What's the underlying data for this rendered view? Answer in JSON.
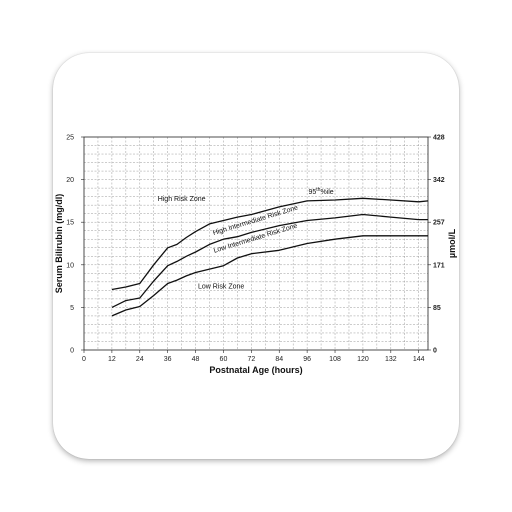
{
  "chart_data": {
    "type": "line",
    "title": "",
    "xlabel": "Postnatal Age (hours)",
    "ylabel": "Serum Bilirubin (mg/dl)",
    "ylabel_right": "µmol/L",
    "xlim": [
      0,
      148
    ],
    "ylim": [
      0,
      25
    ],
    "grid": true,
    "x_ticks": [
      0,
      12,
      24,
      36,
      48,
      60,
      72,
      84,
      96,
      108,
      120,
      132,
      144
    ],
    "y_ticks": [
      0,
      5,
      10,
      15,
      20,
      25
    ],
    "right_ticks": [
      {
        "label": "0",
        "y": 0
      },
      {
        "label": "85",
        "y": 5
      },
      {
        "label": "171",
        "y": 10
      },
      {
        "label": "257",
        "y": 15
      },
      {
        "label": "342",
        "y": 20
      },
      {
        "label": "428",
        "y": 25
      }
    ],
    "series": [
      {
        "name": "95th %ile",
        "x": [
          12,
          18,
          24,
          30,
          36,
          40,
          44,
          48,
          54,
          60,
          66,
          72,
          84,
          96,
          108,
          120,
          132,
          144,
          148
        ],
        "values": [
          7.1,
          7.4,
          7.8,
          10.0,
          12.0,
          12.4,
          13.2,
          13.9,
          14.8,
          15.2,
          15.6,
          15.9,
          16.8,
          17.5,
          17.6,
          17.8,
          17.6,
          17.4,
          17.5
        ]
      },
      {
        "name": "",
        "x": [
          12,
          18,
          24,
          30,
          36,
          40,
          44,
          48,
          54,
          60,
          66,
          72,
          84,
          96,
          108,
          120,
          132,
          144,
          148
        ],
        "values": [
          5.0,
          5.8,
          6.1,
          8.1,
          9.9,
          10.4,
          11.0,
          11.5,
          12.4,
          13.0,
          13.3,
          13.8,
          14.6,
          15.2,
          15.5,
          15.9,
          15.6,
          15.3,
          15.3
        ]
      },
      {
        "name": "",
        "x": [
          12,
          18,
          24,
          30,
          36,
          40,
          44,
          48,
          54,
          60,
          66,
          72,
          84,
          96,
          108,
          120,
          132,
          144,
          148
        ],
        "values": [
          4.0,
          4.7,
          5.1,
          6.4,
          7.8,
          8.2,
          8.7,
          9.1,
          9.5,
          9.9,
          10.8,
          11.3,
          11.7,
          12.5,
          13.0,
          13.4,
          13.4,
          13.4,
          13.4
        ]
      }
    ],
    "annotations": [
      {
        "text": "High Risk Zone",
        "x": 42,
        "y": 17.5,
        "rotate": 0
      },
      {
        "text": "95",
        "sup": "th",
        "suffix": "%ile",
        "x": 102,
        "y": 18.3,
        "rotate": 0
      },
      {
        "text": "High Intermediate Risk Zone",
        "x": 74,
        "y": 15.0,
        "rotate": -17
      },
      {
        "text": "Low Intermediate Risk Zone",
        "x": 74,
        "y": 12.9,
        "rotate": -17
      },
      {
        "text": "Low Risk Zone",
        "x": 59,
        "y": 7.2,
        "rotate": 0
      }
    ]
  }
}
